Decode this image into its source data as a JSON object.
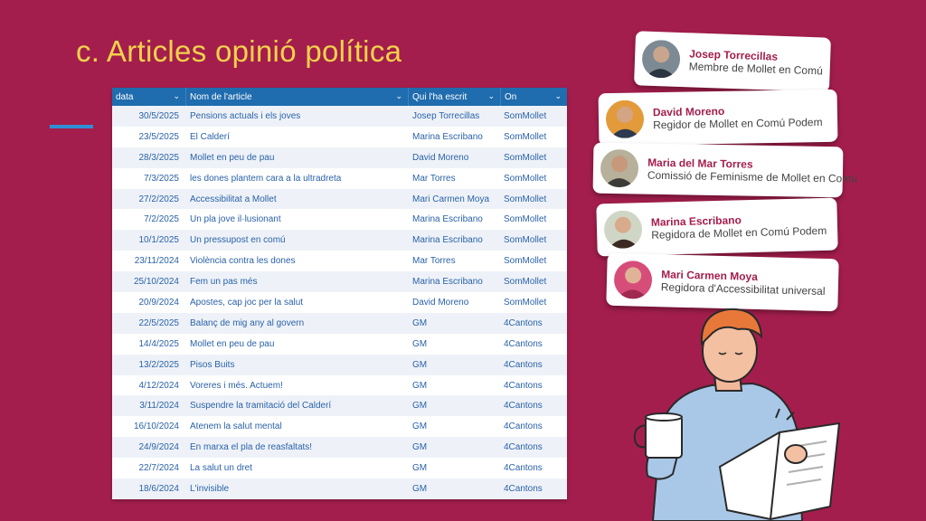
{
  "title": "c. Articles opinió política",
  "table": {
    "headers": [
      "data",
      "Nom de l'article",
      "Qui l'ha escrit",
      "On"
    ],
    "rows": [
      [
        "30/5/2025",
        "Pensions actuals i els joves",
        "Josep Torrecillas",
        "SomMollet"
      ],
      [
        "23/5/2025",
        "El Calderí",
        "Marina Escribano",
        "SomMollet"
      ],
      [
        "28/3/2025",
        "Mollet en peu de pau",
        "David Moreno",
        "SomMollet"
      ],
      [
        "7/3/2025",
        "les dones plantem cara a la ultradreta",
        "Mar Torres",
        "SomMollet"
      ],
      [
        "27/2/2025",
        "Accessibilitat a Mollet",
        "Mari Carmen Moya",
        "SomMollet"
      ],
      [
        "7/2/2025",
        "Un pla jove il·lusionant",
        "Marina Escribano",
        "SomMollet"
      ],
      [
        "10/1/2025",
        "Un pressupost en comú",
        "Marina Escribano",
        "SomMollet"
      ],
      [
        "23/11/2024",
        "Violència contra les dones",
        "Mar Torres",
        "SomMollet"
      ],
      [
        "25/10/2024",
        "Fem un pas més",
        "Marina Escribano",
        "SomMollet"
      ],
      [
        "20/9/2024",
        "Apostes, cap joc per la salut",
        "David Moreno",
        "SomMollet"
      ],
      [
        "22/5/2025",
        "Balanç de mig any al govern",
        "GM",
        "4Cantons"
      ],
      [
        "14/4/2025",
        "Mollet en peu de pau",
        "GM",
        "4Cantons"
      ],
      [
        "13/2/2025",
        "Pisos Buits",
        "GM",
        "4Cantons"
      ],
      [
        "4/12/2024",
        "Voreres i més. Actuem!",
        "GM",
        "4Cantons"
      ],
      [
        "3/11/2024",
        "Suspendre la tramitació del Calderí",
        "GM",
        "4Cantons"
      ],
      [
        "16/10/2024",
        "Atenem la salut mental",
        "GM",
        "4Cantons"
      ],
      [
        "24/9/2024",
        "En marxa el pla de reasfaltats!",
        "GM",
        "4Cantons"
      ],
      [
        "22/7/2024",
        "La salut un dret",
        "GM",
        "4Cantons"
      ],
      [
        "18/6/2024",
        "L'invisible",
        "GM",
        "4Cantons"
      ]
    ]
  },
  "cards": [
    {
      "name": "Josep Torrecillas",
      "role": "Membre de Mollet en Comú"
    },
    {
      "name": "David Moreno",
      "role": "Regidor de Mollet en Comú Podem"
    },
    {
      "name": "Maria del Mar Torres",
      "role": "Comissió de Feminisme de Mollet en Comú"
    },
    {
      "name": "Marina Escribano",
      "role": "Regidora de Mollet en Comú Podem"
    },
    {
      "name": "Mari Carmen Moya",
      "role": "Regidora d'Accessibilitat universal"
    }
  ],
  "colors": {
    "background": "#a41e4d",
    "title": "#f2d24b",
    "header": "#1f6cae",
    "cell_text": "#2a62a8"
  }
}
